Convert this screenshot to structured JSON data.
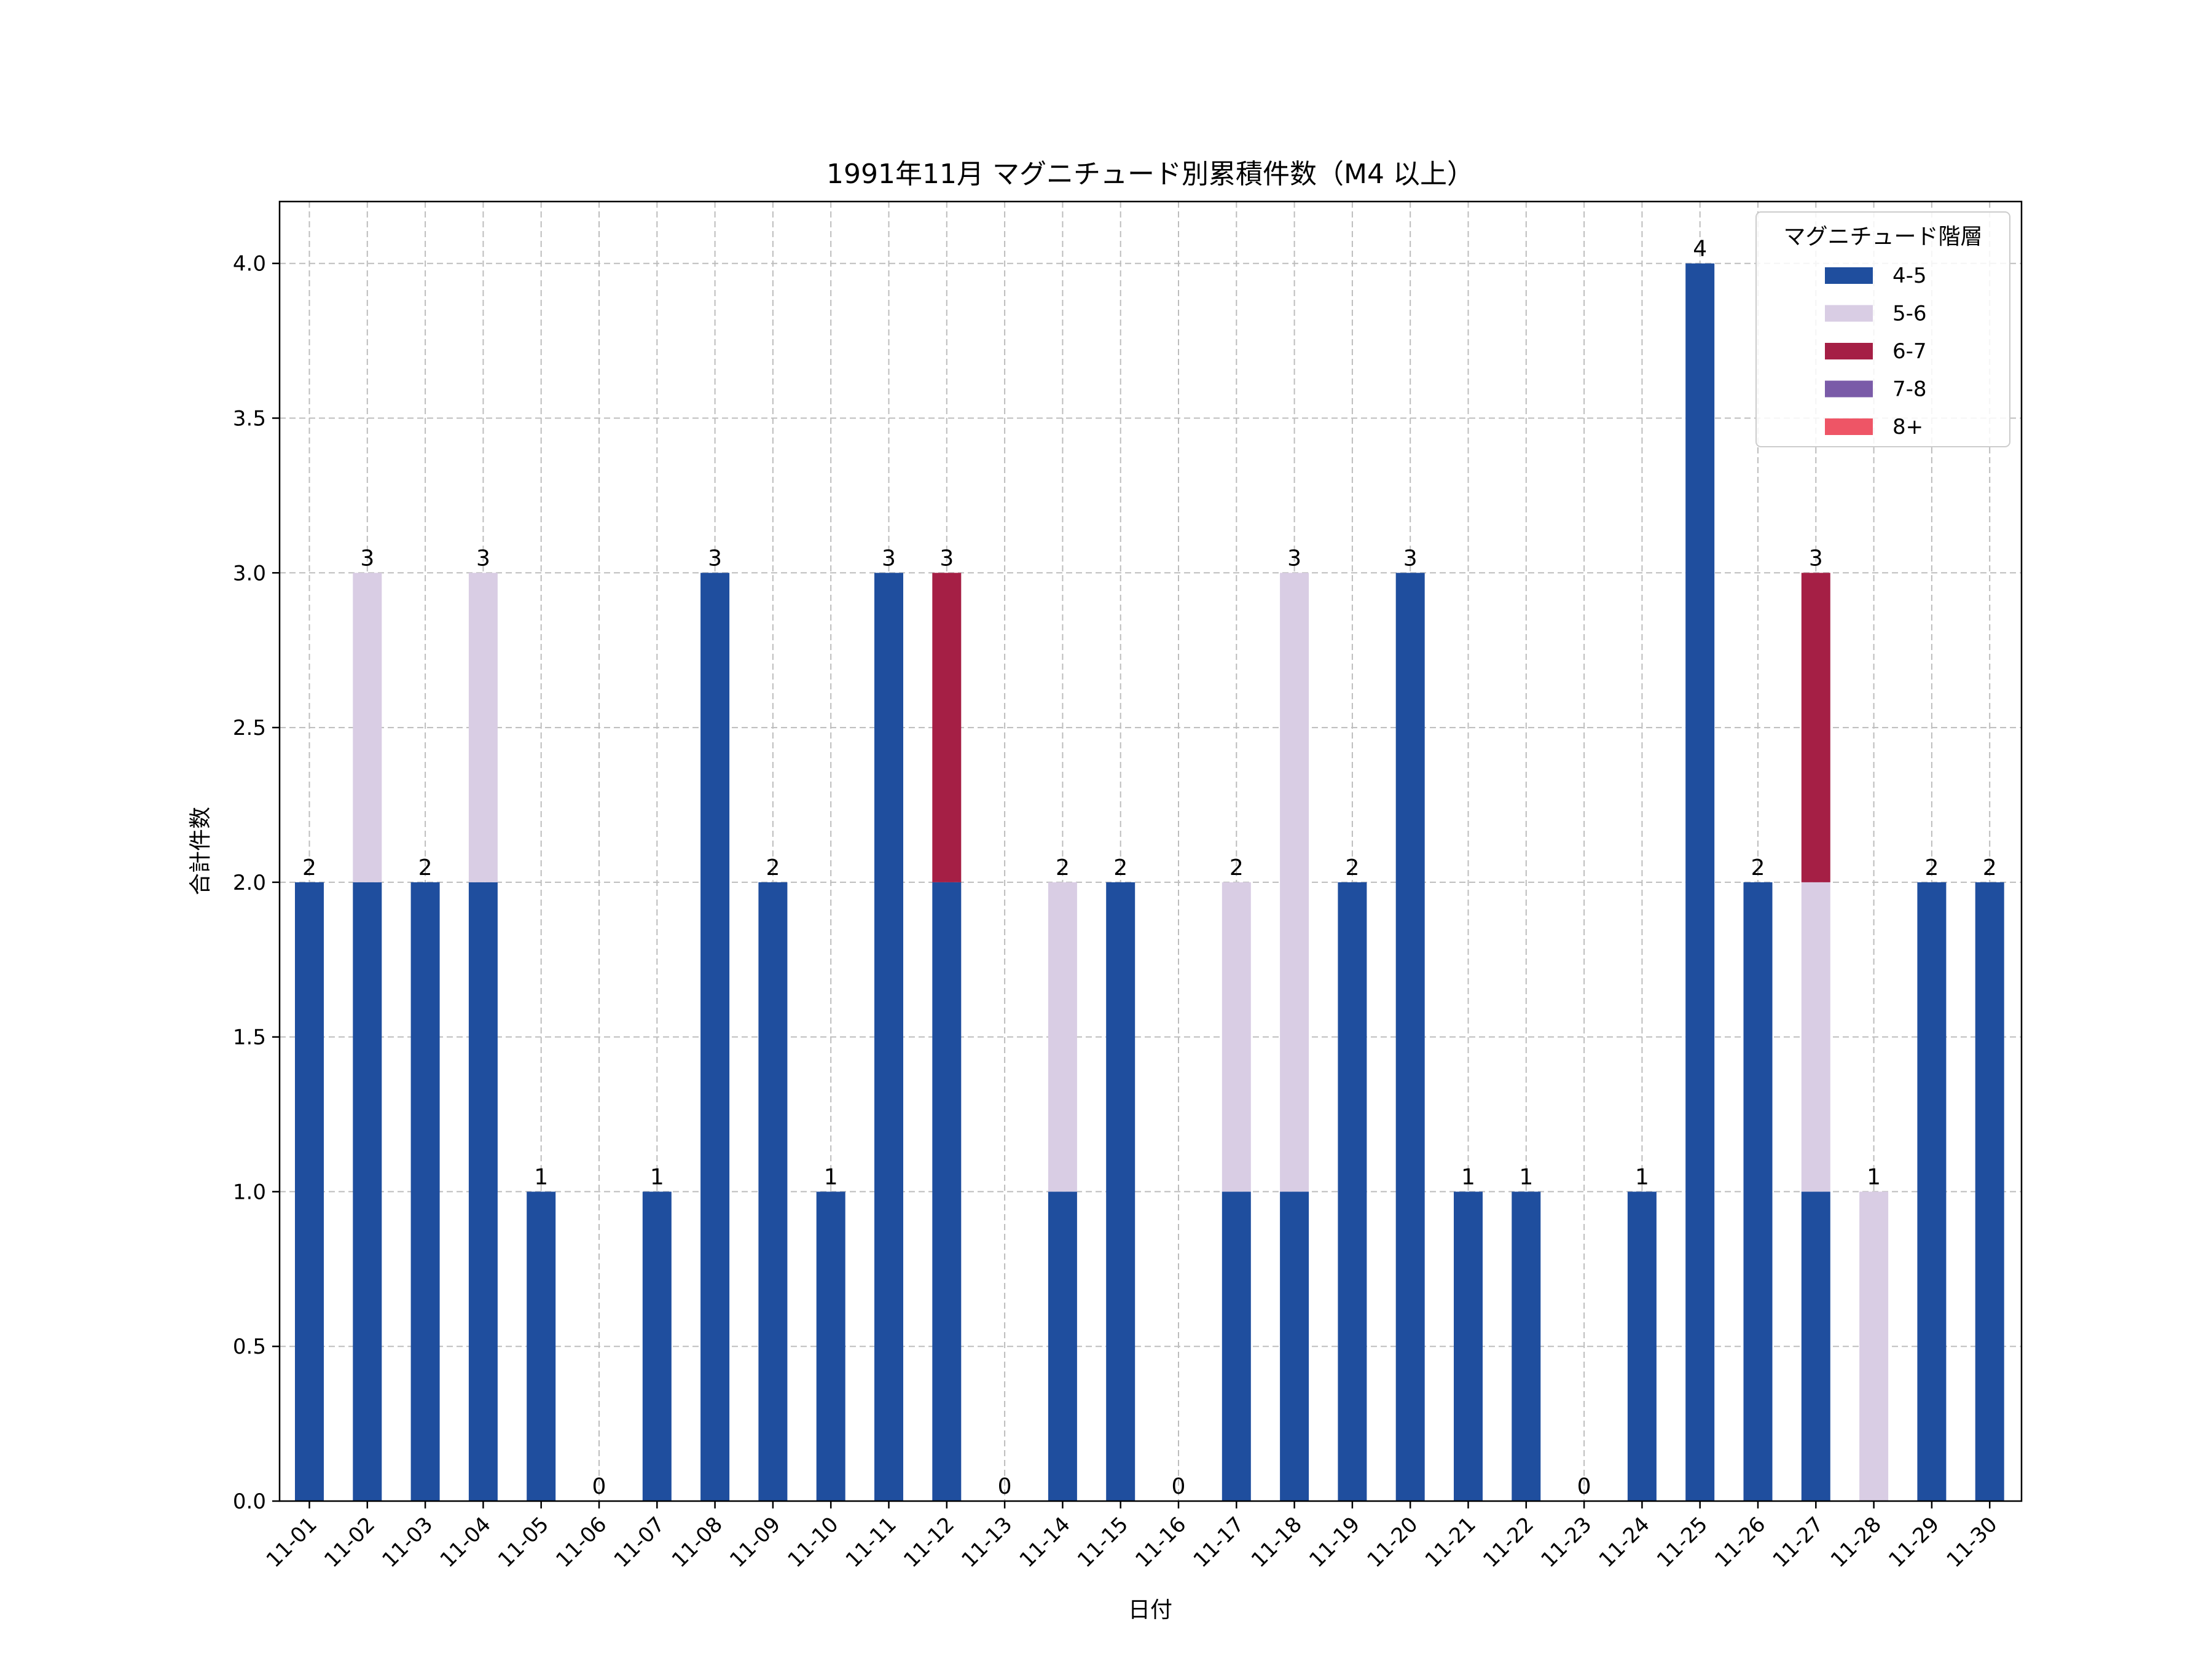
{
  "chart_data": {
    "type": "bar",
    "stacked": true,
    "title": "1991年11月 マグニチュード別累積件数（M4 以上）",
    "xlabel": "日付",
    "ylabel": "合計件数",
    "ylim": [
      0,
      4.2
    ],
    "yticks": [
      "0.0",
      "0.5",
      "1.0",
      "1.5",
      "2.0",
      "2.5",
      "3.0",
      "3.5",
      "4.0"
    ],
    "grid": true,
    "legend": {
      "title": "マグニチュード階層",
      "placement": "top-right"
    },
    "categories": [
      "11-01",
      "11-02",
      "11-03",
      "11-04",
      "11-05",
      "11-06",
      "11-07",
      "11-08",
      "11-09",
      "11-10",
      "11-11",
      "11-12",
      "11-13",
      "11-14",
      "11-15",
      "11-16",
      "11-17",
      "11-18",
      "11-19",
      "11-20",
      "11-21",
      "11-22",
      "11-23",
      "11-24",
      "11-25",
      "11-26",
      "11-27",
      "11-28",
      "11-29",
      "11-30"
    ],
    "series": [
      {
        "name": "4-5",
        "color": "#1f4e9e",
        "values": [
          2,
          2,
          2,
          2,
          1,
          0,
          1,
          3,
          2,
          1,
          3,
          2,
          0,
          1,
          2,
          0,
          1,
          1,
          2,
          3,
          1,
          1,
          0,
          1,
          4,
          2,
          1,
          0,
          2,
          2
        ]
      },
      {
        "name": "5-6",
        "color": "#d9cde4",
        "values": [
          0,
          1,
          0,
          1,
          0,
          0,
          0,
          0,
          0,
          0,
          0,
          0,
          0,
          1,
          0,
          0,
          1,
          2,
          0,
          0,
          0,
          0,
          0,
          0,
          0,
          0,
          1,
          1,
          0,
          0
        ]
      },
      {
        "name": "6-7",
        "color": "#a51f45",
        "values": [
          0,
          0,
          0,
          0,
          0,
          0,
          0,
          0,
          0,
          0,
          0,
          1,
          0,
          0,
          0,
          0,
          0,
          0,
          0,
          0,
          0,
          0,
          0,
          0,
          0,
          0,
          1,
          0,
          0,
          0
        ]
      },
      {
        "name": "7-8",
        "color": "#7a5ba8",
        "values": [
          0,
          0,
          0,
          0,
          0,
          0,
          0,
          0,
          0,
          0,
          0,
          0,
          0,
          0,
          0,
          0,
          0,
          0,
          0,
          0,
          0,
          0,
          0,
          0,
          0,
          0,
          0,
          0,
          0,
          0
        ]
      },
      {
        "name": "8+",
        "color": "#ee5566",
        "values": [
          0,
          0,
          0,
          0,
          0,
          0,
          0,
          0,
          0,
          0,
          0,
          0,
          0,
          0,
          0,
          0,
          0,
          0,
          0,
          0,
          0,
          0,
          0,
          0,
          0,
          0,
          0,
          0,
          0,
          0
        ]
      }
    ],
    "totals": [
      2,
      3,
      2,
      3,
      1,
      0,
      1,
      3,
      2,
      1,
      3,
      3,
      0,
      2,
      2,
      0,
      2,
      3,
      2,
      3,
      1,
      1,
      0,
      1,
      4,
      2,
      3,
      1,
      2,
      2
    ]
  }
}
